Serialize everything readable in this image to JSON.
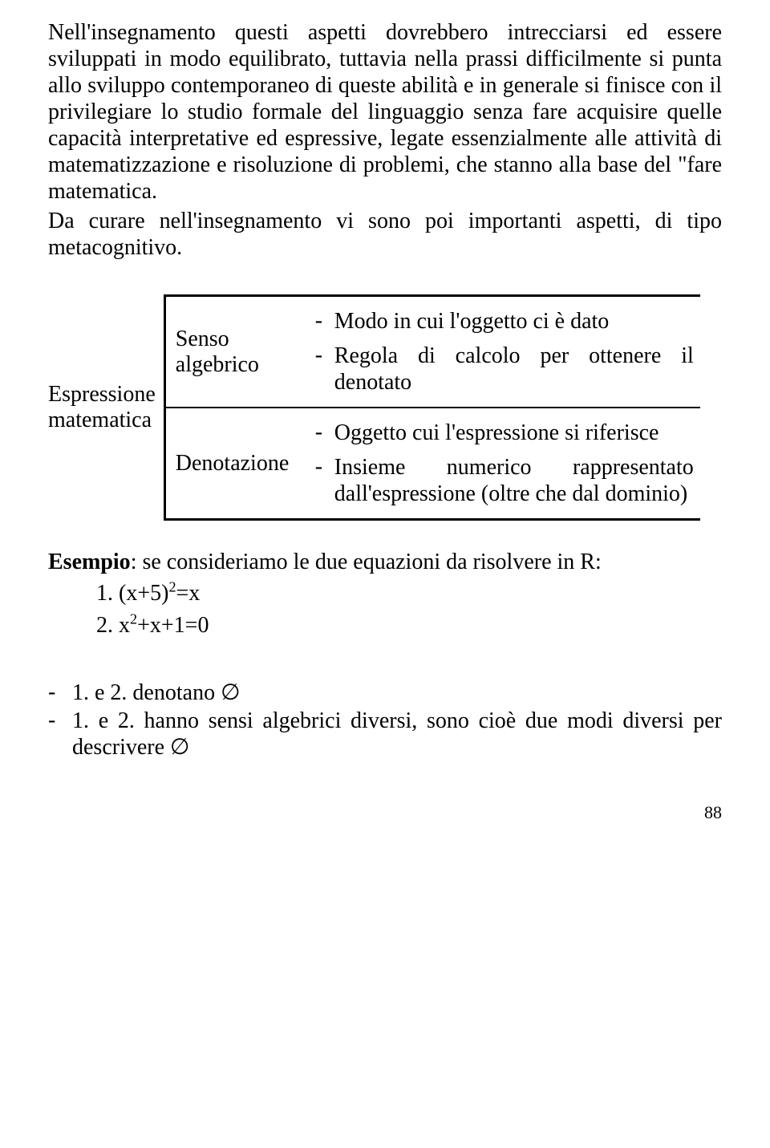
{
  "paragraph1": "Nell'insegnamento questi aspetti dovrebbero intrecciarsi ed essere sviluppati in modo equilibrato, tuttavia nella prassi difficilmente si punta allo sviluppo contemporaneo di queste abilità e in generale si finisce con il privilegiare lo studio formale del linguaggio senza fare acquisire quelle capacità interpretative ed espressive, legate essenzialmente alle attività di matematizzazione e risoluzione di problemi, che stanno alla base del \"fare matematica.",
  "paragraph2": "Da curare nell'insegnamento vi sono poi importanti aspetti, di tipo metacognitivo.",
  "table": {
    "leftLabel_line1": "Espressione",
    "leftLabel_line2": "matematica",
    "rows": [
      {
        "label_line1": "Senso",
        "label_line2": "algebrico",
        "items": [
          "Modo in cui l'oggetto ci è dato",
          "Regola di calcolo per ottenere il denotato"
        ]
      },
      {
        "label_line1": "Denotazione",
        "label_line2": "",
        "items": [
          "Oggetto cui l'espressione si riferisce",
          "Insieme numerico rappresentato dall'espressione (oltre che dal dominio)"
        ]
      }
    ]
  },
  "example": {
    "lead_bold": "Esempio",
    "lead_rest": ": se consideriamo le due equazioni da risolvere in R:",
    "eq1_num": "1.",
    "eq1_body": "(x+5)",
    "eq1_sup": "2",
    "eq1_tail": "=x",
    "eq2_num": "2.",
    "eq2_a": "x",
    "eq2_sup": "2",
    "eq2_b": "+x+1=0"
  },
  "conclusions": {
    "c1_a": "1. e 2. denotano ",
    "c1_b": "∅",
    "c2_a": "1. e 2. hanno sensi algebrici diversi, sono cioè due modi diversi per descrivere ",
    "c2_b": "∅"
  },
  "pageNumber": "88"
}
